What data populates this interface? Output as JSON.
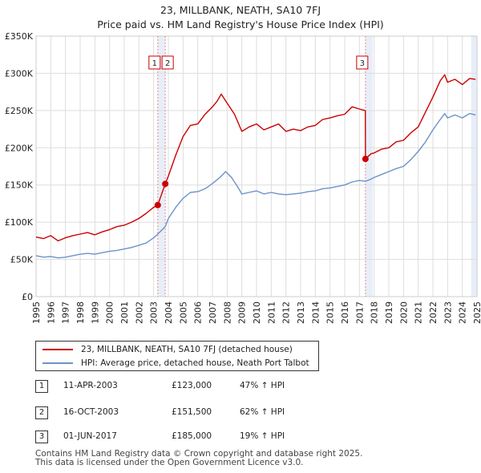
{
  "title_line1": "23, MILLBANK, NEATH, SA10 7FJ",
  "title_line2": "Price paid vs. HM Land Registry's House Price Index (HPI)",
  "colors": {
    "property": "#cc0000",
    "hpi": "#6b93c8",
    "grid": "#dddddd",
    "shade": "#e8eef8",
    "marker_line": "#e88888"
  },
  "chart_data": {
    "type": "line",
    "ylim": [
      0,
      350000
    ],
    "xlim": [
      1995,
      2025
    ],
    "yticks": [
      {
        "value": 0,
        "label": "£0"
      },
      {
        "value": 50000,
        "label": "£50K"
      },
      {
        "value": 100000,
        "label": "£100K"
      },
      {
        "value": 150000,
        "label": "£150K"
      },
      {
        "value": 200000,
        "label": "£200K"
      },
      {
        "value": 250000,
        "label": "£250K"
      },
      {
        "value": 300000,
        "label": "£300K"
      },
      {
        "value": 350000,
        "label": "£350K"
      }
    ],
    "xticks": [
      "1995",
      "1996",
      "1997",
      "1998",
      "1999",
      "2000",
      "2001",
      "2002",
      "2003",
      "2004",
      "2005",
      "2006",
      "2007",
      "2008",
      "2009",
      "2010",
      "2011",
      "2012",
      "2013",
      "2014",
      "2015",
      "2016",
      "2017",
      "2018",
      "2019",
      "2020",
      "2021",
      "2022",
      "2023",
      "2024",
      "2025"
    ],
    "series": [
      {
        "name": "23, MILLBANK, NEATH, SA10 7FJ (detached house)",
        "color": "#cc0000",
        "points": [
          [
            1995.0,
            80000
          ],
          [
            1995.5,
            78000
          ],
          [
            1996.0,
            82000
          ],
          [
            1996.5,
            75000
          ],
          [
            1997.0,
            79000
          ],
          [
            1997.5,
            82000
          ],
          [
            1998.0,
            84000
          ],
          [
            1998.5,
            86000
          ],
          [
            1999.0,
            83000
          ],
          [
            1999.5,
            87000
          ],
          [
            2000.0,
            90000
          ],
          [
            2000.5,
            94000
          ],
          [
            2001.0,
            96000
          ],
          [
            2001.5,
            100000
          ],
          [
            2002.0,
            105000
          ],
          [
            2002.5,
            112000
          ],
          [
            2003.0,
            120000
          ],
          [
            2003.28,
            123000
          ],
          [
            2003.79,
            151500
          ],
          [
            2004.0,
            162000
          ],
          [
            2004.5,
            190000
          ],
          [
            2005.0,
            215000
          ],
          [
            2005.5,
            230000
          ],
          [
            2006.0,
            232000
          ],
          [
            2006.5,
            245000
          ],
          [
            2007.0,
            255000
          ],
          [
            2007.3,
            262000
          ],
          [
            2007.6,
            272000
          ],
          [
            2008.0,
            260000
          ],
          [
            2008.5,
            245000
          ],
          [
            2009.0,
            222000
          ],
          [
            2009.5,
            228000
          ],
          [
            2010.0,
            232000
          ],
          [
            2010.5,
            224000
          ],
          [
            2011.0,
            228000
          ],
          [
            2011.5,
            232000
          ],
          [
            2012.0,
            222000
          ],
          [
            2012.5,
            225000
          ],
          [
            2013.0,
            223000
          ],
          [
            2013.5,
            228000
          ],
          [
            2014.0,
            230000
          ],
          [
            2014.5,
            238000
          ],
          [
            2015.0,
            240000
          ],
          [
            2015.5,
            243000
          ],
          [
            2016.0,
            245000
          ],
          [
            2016.5,
            255000
          ],
          [
            2017.0,
            252000
          ],
          [
            2017.4,
            250000
          ],
          [
            2017.41,
            185000
          ],
          [
            2017.8,
            192000
          ],
          [
            2018.0,
            193000
          ],
          [
            2018.5,
            198000
          ],
          [
            2019.0,
            200000
          ],
          [
            2019.5,
            208000
          ],
          [
            2020.0,
            210000
          ],
          [
            2020.5,
            220000
          ],
          [
            2021.0,
            228000
          ],
          [
            2021.5,
            248000
          ],
          [
            2022.0,
            268000
          ],
          [
            2022.5,
            290000
          ],
          [
            2022.8,
            298000
          ],
          [
            2023.0,
            288000
          ],
          [
            2023.5,
            292000
          ],
          [
            2024.0,
            285000
          ],
          [
            2024.5,
            293000
          ],
          [
            2024.9,
            292000
          ]
        ]
      },
      {
        "name": "HPI: Average price, detached house, Neath Port Talbot",
        "color": "#6b93c8",
        "points": [
          [
            1995.0,
            55000
          ],
          [
            1995.5,
            53000
          ],
          [
            1996.0,
            54000
          ],
          [
            1996.5,
            52000
          ],
          [
            1997.0,
            53000
          ],
          [
            1997.5,
            55000
          ],
          [
            1998.0,
            57000
          ],
          [
            1998.5,
            58000
          ],
          [
            1999.0,
            57000
          ],
          [
            1999.5,
            59000
          ],
          [
            2000.0,
            61000
          ],
          [
            2000.5,
            62000
          ],
          [
            2001.0,
            64000
          ],
          [
            2001.5,
            66000
          ],
          [
            2002.0,
            69000
          ],
          [
            2002.5,
            72000
          ],
          [
            2003.0,
            79000
          ],
          [
            2003.28,
            84000
          ],
          [
            2003.79,
            94000
          ],
          [
            2004.0,
            105000
          ],
          [
            2004.5,
            120000
          ],
          [
            2005.0,
            132000
          ],
          [
            2005.5,
            140000
          ],
          [
            2006.0,
            141000
          ],
          [
            2006.5,
            145000
          ],
          [
            2007.0,
            152000
          ],
          [
            2007.5,
            160000
          ],
          [
            2007.9,
            168000
          ],
          [
            2008.3,
            160000
          ],
          [
            2008.7,
            148000
          ],
          [
            2009.0,
            138000
          ],
          [
            2009.5,
            140000
          ],
          [
            2010.0,
            142000
          ],
          [
            2010.5,
            138000
          ],
          [
            2011.0,
            140000
          ],
          [
            2011.5,
            138000
          ],
          [
            2012.0,
            137000
          ],
          [
            2012.5,
            138000
          ],
          [
            2013.0,
            139000
          ],
          [
            2013.5,
            141000
          ],
          [
            2014.0,
            142000
          ],
          [
            2014.5,
            145000
          ],
          [
            2015.0,
            146000
          ],
          [
            2015.5,
            148000
          ],
          [
            2016.0,
            150000
          ],
          [
            2016.5,
            154000
          ],
          [
            2017.0,
            156000
          ],
          [
            2017.41,
            155000
          ],
          [
            2017.8,
            158000
          ],
          [
            2018.0,
            160000
          ],
          [
            2018.5,
            164000
          ],
          [
            2019.0,
            168000
          ],
          [
            2019.5,
            172000
          ],
          [
            2020.0,
            175000
          ],
          [
            2020.5,
            184000
          ],
          [
            2021.0,
            195000
          ],
          [
            2021.5,
            208000
          ],
          [
            2022.0,
            224000
          ],
          [
            2022.5,
            238000
          ],
          [
            2022.8,
            246000
          ],
          [
            2023.0,
            240000
          ],
          [
            2023.5,
            244000
          ],
          [
            2024.0,
            240000
          ],
          [
            2024.5,
            246000
          ],
          [
            2024.9,
            244000
          ]
        ]
      }
    ],
    "sales": [
      {
        "id": "1",
        "x": 2003.28,
        "value": 123000
      },
      {
        "id": "2",
        "x": 2003.79,
        "value": 151500
      },
      {
        "id": "3",
        "x": 2017.41,
        "value": 185000
      }
    ],
    "marker_labels": [
      "1",
      "2",
      "3"
    ]
  },
  "legend": {
    "property_label": "23, MILLBANK, NEATH, SA10 7FJ (detached house)",
    "hpi_label": "HPI: Average price, detached house, Neath Port Talbot"
  },
  "transactions": [
    {
      "num": "1",
      "date": "11-APR-2003",
      "price": "£123,000",
      "hpi": "47% ↑ HPI"
    },
    {
      "num": "2",
      "date": "16-OCT-2003",
      "price": "£151,500",
      "hpi": "62% ↑ HPI"
    },
    {
      "num": "3",
      "date": "01-JUN-2017",
      "price": "£185,000",
      "hpi": "19% ↑ HPI"
    }
  ],
  "footer_line1": "Contains HM Land Registry data © Crown copyright and database right 2025.",
  "footer_line2": "This data is licensed under the Open Government Licence v3.0."
}
